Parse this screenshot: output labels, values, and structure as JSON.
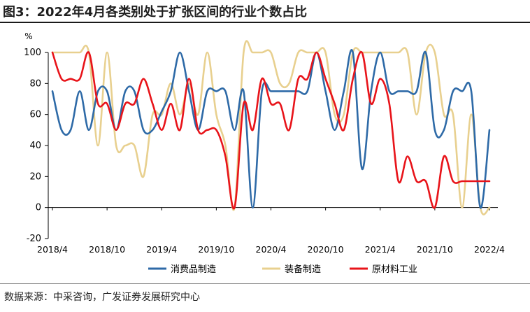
{
  "figure": {
    "title": "图3：2022年4月各类别处于扩张区间的行业个数占比",
    "source": "数据来源：中采咨询，广发证券发展研究中心"
  },
  "colors": {
    "consumer": "#2E6AA7",
    "equipment": "#E8D08F",
    "materials": "#E8141A",
    "axis": "#000000"
  },
  "chart_data": {
    "type": "line",
    "unit_label": "%",
    "ylim": [
      -20,
      100
    ],
    "yticks": [
      -20,
      0,
      20,
      40,
      60,
      80,
      100
    ],
    "xtick_labels": [
      "2018/4",
      "2018/10",
      "2019/4",
      "2019/10",
      "2020/4",
      "2020/10",
      "2021/4",
      "2021/10",
      "2022/4"
    ],
    "x": [
      "2018/4",
      "2018/5",
      "2018/6",
      "2018/7",
      "2018/8",
      "2018/9",
      "2018/10",
      "2018/11",
      "2018/12",
      "2019/1",
      "2019/2",
      "2019/3",
      "2019/4",
      "2019/5",
      "2019/6",
      "2019/7",
      "2019/8",
      "2019/9",
      "2019/10",
      "2019/11",
      "2019/12",
      "2020/1",
      "2020/2",
      "2020/3",
      "2020/4",
      "2020/5",
      "2020/6",
      "2020/7",
      "2020/8",
      "2020/9",
      "2020/10",
      "2020/11",
      "2020/12",
      "2021/1",
      "2021/2",
      "2021/3",
      "2021/4",
      "2021/5",
      "2021/6",
      "2021/7",
      "2021/8",
      "2021/9",
      "2021/10",
      "2021/11",
      "2021/12",
      "2022/1",
      "2022/2",
      "2022/3",
      "2022/4"
    ],
    "legend_position": "bottom",
    "grid": false,
    "series": [
      {
        "name": "消费品制造",
        "color_key": "consumer",
        "values": [
          75,
          50,
          50,
          75,
          50,
          75,
          75,
          50,
          75,
          75,
          50,
          50,
          62,
          75,
          100,
          75,
          50,
          75,
          75,
          75,
          50,
          75,
          0,
          75,
          75,
          75,
          75,
          75,
          75,
          100,
          75,
          50,
          75,
          100,
          25,
          75,
          100,
          75,
          75,
          75,
          75,
          100,
          50,
          50,
          75,
          75,
          75,
          0,
          50
        ]
      },
      {
        "name": "装备制造",
        "color_key": "equipment",
        "values": [
          100,
          100,
          100,
          100,
          100,
          40,
          100,
          40,
          40,
          40,
          20,
          60,
          60,
          80,
          60,
          80,
          60,
          100,
          60,
          40,
          0,
          100,
          100,
          100,
          100,
          80,
          80,
          100,
          100,
          100,
          100,
          60,
          60,
          100,
          100,
          100,
          100,
          100,
          100,
          100,
          60,
          100,
          100,
          60,
          60,
          0,
          60,
          0,
          0
        ]
      },
      {
        "name": "原材料工业",
        "color_key": "materials",
        "values": [
          100,
          83,
          83,
          83,
          100,
          67,
          67,
          50,
          67,
          67,
          83,
          67,
          50,
          67,
          50,
          83,
          50,
          50,
          50,
          33,
          0,
          67,
          50,
          83,
          67,
          67,
          50,
          83,
          83,
          100,
          83,
          67,
          50,
          83,
          100,
          67,
          83,
          67,
          17,
          33,
          17,
          17,
          0,
          33,
          17,
          17,
          17,
          17,
          17
        ]
      }
    ]
  }
}
